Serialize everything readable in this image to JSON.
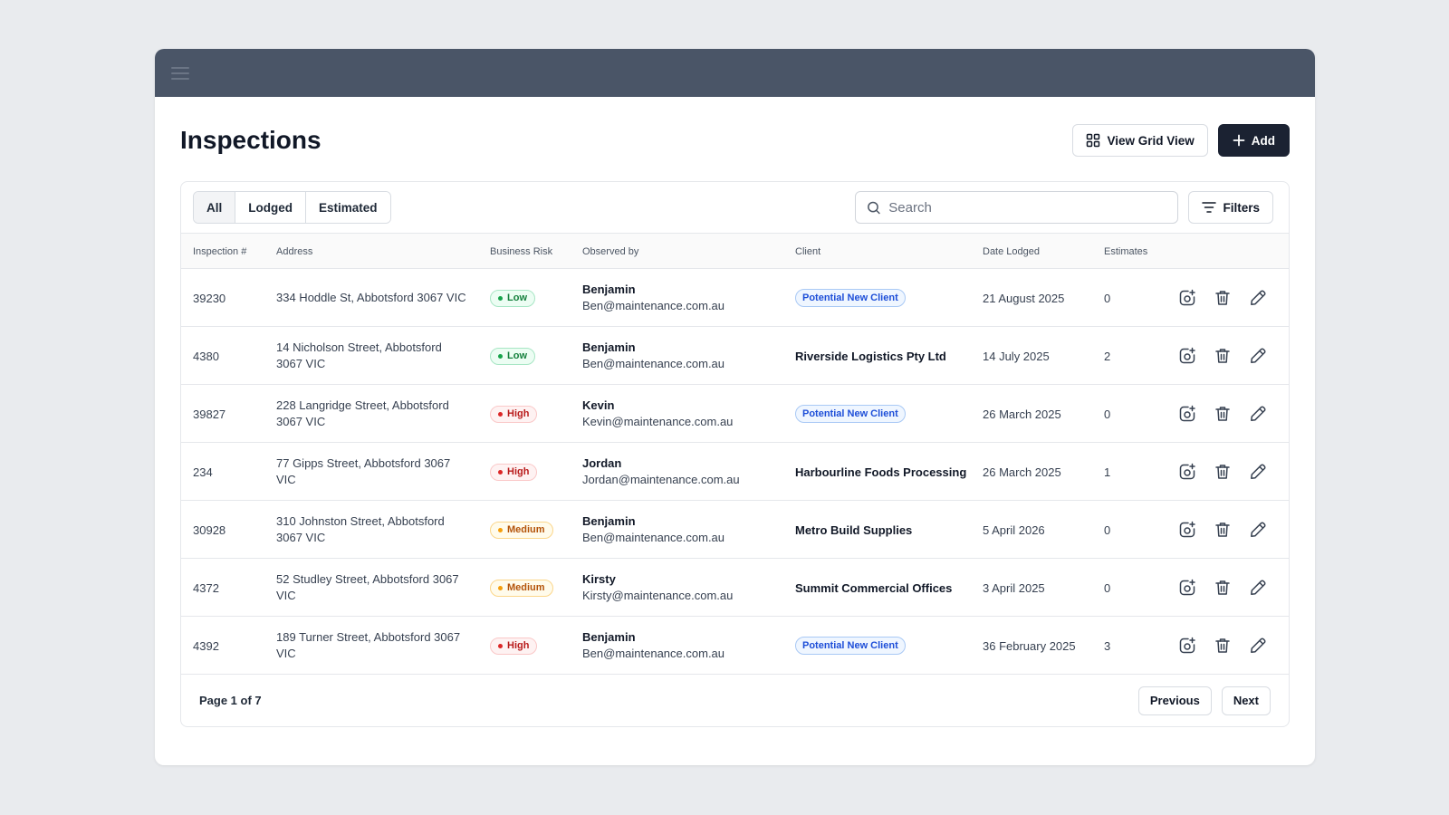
{
  "header": {
    "title": "Inspections",
    "grid_view_label": "View Grid View",
    "add_label": "Add"
  },
  "tabs": [
    {
      "label": "All",
      "active": true
    },
    {
      "label": "Lodged",
      "active": false
    },
    {
      "label": "Estimated",
      "active": false
    }
  ],
  "search": {
    "placeholder": "Search",
    "value": ""
  },
  "filters_label": "Filters",
  "columns": {
    "inspection": "Inspection #",
    "address": "Address",
    "risk": "Business Risk",
    "observed": "Observed by",
    "client": "Client",
    "date": "Date Lodged",
    "estimates": "Estimates"
  },
  "rows": [
    {
      "id": "39230",
      "address": "334 Hoddle St, Abbotsford 3067 VIC",
      "risk": "Low",
      "risk_level": "low",
      "observer_name": "Benjamin",
      "observer_email": "Ben@maintenance.com.au",
      "client": "Potential New Client",
      "client_is_badge": true,
      "date": "21 August 2025",
      "estimates": "0"
    },
    {
      "id": "4380",
      "address": "14 Nicholson Street, Abbotsford 3067 VIC",
      "risk": "Low",
      "risk_level": "low",
      "observer_name": "Benjamin",
      "observer_email": "Ben@maintenance.com.au",
      "client": "Riverside Logistics Pty Ltd",
      "client_is_badge": false,
      "date": "14 July 2025",
      "estimates": "2"
    },
    {
      "id": "39827",
      "address": "228 Langridge Street, Abbotsford 3067 VIC",
      "risk": "High",
      "risk_level": "high",
      "observer_name": "Kevin",
      "observer_email": "Kevin@maintenance.com.au",
      "client": "Potential New Client",
      "client_is_badge": true,
      "date": "26 March 2025",
      "estimates": "0"
    },
    {
      "id": "234",
      "address": "77 Gipps Street, Abbotsford 3067 VIC",
      "risk": "High",
      "risk_level": "high",
      "observer_name": "Jordan",
      "observer_email": "Jordan@maintenance.com.au",
      "client": "Harbourline Foods Processing",
      "client_is_badge": false,
      "date": "26 March 2025",
      "estimates": "1"
    },
    {
      "id": "30928",
      "address": "310 Johnston Street, Abbotsford 3067 VIC",
      "risk": "Medium",
      "risk_level": "medium",
      "observer_name": "Benjamin",
      "observer_email": "Ben@maintenance.com.au",
      "client": "Metro Build Supplies",
      "client_is_badge": false,
      "date": "5 April 2026",
      "estimates": "0"
    },
    {
      "id": "4372",
      "address": "52 Studley Street, Abbotsford 3067 VIC",
      "risk": "Medium",
      "risk_level": "medium",
      "observer_name": "Kirsty",
      "observer_email": "Kirsty@maintenance.com.au",
      "client": "Summit Commercial Offices",
      "client_is_badge": false,
      "date": "3 April 2025",
      "estimates": "0"
    },
    {
      "id": "4392",
      "address": "189 Turner Street, Abbotsford 3067 VIC",
      "risk": "High",
      "risk_level": "high",
      "observer_name": "Benjamin",
      "observer_email": "Ben@maintenance.com.au",
      "client": "Potential New Client",
      "client_is_badge": true,
      "date": "36 February 2025",
      "estimates": "3"
    }
  ],
  "row_action_icons": [
    "add-photo-icon",
    "trash-icon",
    "pencil-icon"
  ],
  "pagination": {
    "label": "Page 1 of 7",
    "previous_label": "Previous",
    "next_label": "Next"
  },
  "colors": {
    "topbar": "#4a5567",
    "primary_button": "#1b2232",
    "low": "#16a34a",
    "high": "#dc2626",
    "medium": "#f59e0b",
    "client_badge": "#1d4ed8"
  }
}
